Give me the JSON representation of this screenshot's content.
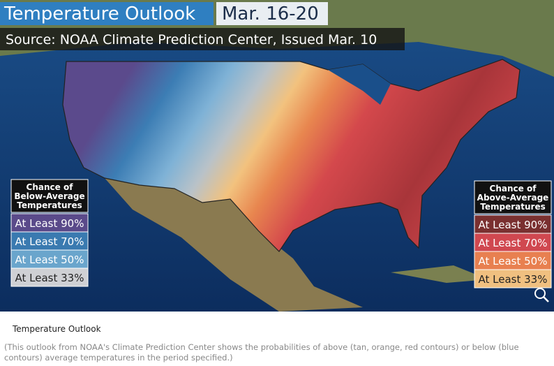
{
  "header": {
    "title": "Temperature Outlook",
    "dates": "Mar. 16-20",
    "source": "Source: NOAA Climate Prediction Center, Issued Mar. 10"
  },
  "legends": {
    "below": {
      "title_lines": [
        "Chance of",
        "Below-Average",
        "Temperatures"
      ],
      "rows": [
        "At Least 90%",
        "At Least 70%",
        "At Least 50%",
        "At Least 33%"
      ]
    },
    "above": {
      "title_lines": [
        "Chance of",
        "Above-Average",
        "Temperatures"
      ],
      "rows": [
        "At Least 90%",
        "At Least 70%",
        "At Least 50%",
        "At Least 33%"
      ]
    }
  },
  "caption": {
    "title": "Temperature Outlook",
    "text": "(This outlook from NOAA's Climate Prediction Center shows the probabilities of above (tan, orange, red contours) or below (blue contours) average temperatures in the period specified.)"
  }
}
